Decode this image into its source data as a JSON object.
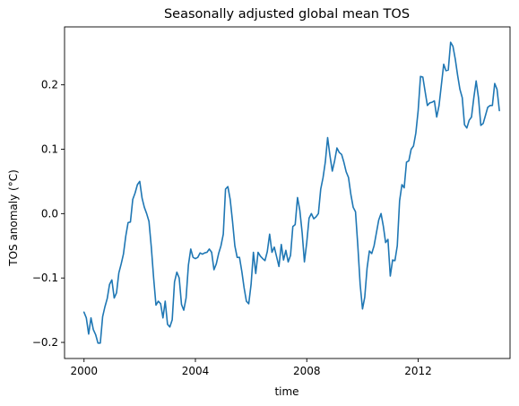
{
  "chart_data": {
    "type": "line",
    "title": "Seasonally adjusted global mean TOS",
    "xlabel": "time",
    "ylabel": "TOS anomaly (°C)",
    "xlim": [
      1999.3,
      2015.3
    ],
    "ylim": [
      -0.225,
      0.29
    ],
    "x_ticks": [
      2000,
      2004,
      2008,
      2012
    ],
    "x_tick_labels": [
      "2000",
      "2004",
      "2008",
      "2012"
    ],
    "y_ticks": [
      -0.2,
      -0.1,
      0.0,
      0.1,
      0.2
    ],
    "y_tick_labels": [
      "−0.2",
      "−0.1",
      "0.0",
      "0.1",
      "0.2"
    ],
    "grid": false,
    "legend": "none",
    "series": [
      {
        "color": "#1f77b4",
        "x_start": 2000.0,
        "x_step_years": 0.08333,
        "values": [
          -0.153,
          -0.162,
          -0.187,
          -0.162,
          -0.18,
          -0.188,
          -0.201,
          -0.201,
          -0.16,
          -0.145,
          -0.132,
          -0.11,
          -0.103,
          -0.131,
          -0.123,
          -0.092,
          -0.078,
          -0.063,
          -0.035,
          -0.014,
          -0.013,
          0.022,
          0.032,
          0.045,
          0.05,
          0.024,
          0.01,
          0.0,
          -0.012,
          -0.052,
          -0.1,
          -0.142,
          -0.136,
          -0.14,
          -0.162,
          -0.136,
          -0.172,
          -0.176,
          -0.165,
          -0.106,
          -0.091,
          -0.1,
          -0.141,
          -0.15,
          -0.131,
          -0.08,
          -0.055,
          -0.068,
          -0.07,
          -0.068,
          -0.061,
          -0.063,
          -0.061,
          -0.06,
          -0.055,
          -0.06,
          -0.087,
          -0.078,
          -0.062,
          -0.05,
          -0.032,
          0.038,
          0.042,
          0.022,
          -0.012,
          -0.05,
          -0.068,
          -0.068,
          -0.09,
          -0.115,
          -0.136,
          -0.14,
          -0.11,
          -0.06,
          -0.093,
          -0.06,
          -0.066,
          -0.07,
          -0.073,
          -0.059,
          -0.032,
          -0.06,
          -0.052,
          -0.067,
          -0.082,
          -0.048,
          -0.072,
          -0.057,
          -0.075,
          -0.065,
          -0.02,
          -0.017,
          0.025,
          0.005,
          -0.03,
          -0.075,
          -0.045,
          -0.007,
          0.0,
          -0.008,
          -0.005,
          0.0,
          0.038,
          0.056,
          0.08,
          0.118,
          0.09,
          0.066,
          0.082,
          0.102,
          0.095,
          0.092,
          0.08,
          0.065,
          0.056,
          0.03,
          0.01,
          0.003,
          -0.05,
          -0.11,
          -0.148,
          -0.13,
          -0.085,
          -0.058,
          -0.062,
          -0.05,
          -0.03,
          -0.01,
          0.0,
          -0.02,
          -0.045,
          -0.04,
          -0.097,
          -0.072,
          -0.073,
          -0.05,
          0.02,
          0.045,
          0.04,
          0.08,
          0.082,
          0.1,
          0.105,
          0.125,
          0.16,
          0.213,
          0.212,
          0.19,
          0.168,
          0.172,
          0.173,
          0.175,
          0.15,
          0.168,
          0.2,
          0.232,
          0.222,
          0.223,
          0.266,
          0.26,
          0.24,
          0.215,
          0.193,
          0.18,
          0.138,
          0.133,
          0.145,
          0.15,
          0.18,
          0.206,
          0.18,
          0.137,
          0.14,
          0.152,
          0.165,
          0.168,
          0.168,
          0.202,
          0.193,
          0.16
        ]
      }
    ]
  }
}
